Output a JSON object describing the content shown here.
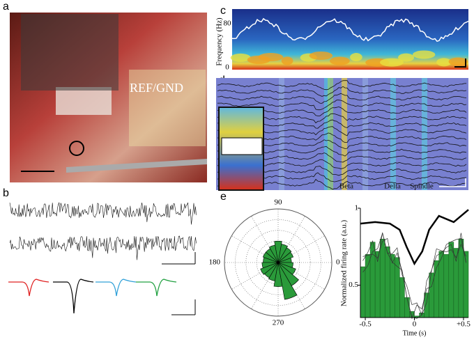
{
  "panels": {
    "a": {
      "label": "a",
      "annotation": "REF/GND"
    },
    "b": {
      "label": "b"
    },
    "c": {
      "label": "c",
      "axis_label": "Frequency (Hz)",
      "yticks": [
        80,
        0
      ]
    },
    "d": {
      "label": "d",
      "bands": [
        "Beta",
        "Delta",
        "Spindle"
      ]
    },
    "e": {
      "label": "e",
      "polar": {
        "angle_labels": [
          90,
          180,
          0,
          270
        ],
        "angles": [
          10,
          30,
          50,
          70,
          90,
          110,
          130,
          150,
          170,
          190,
          210,
          230,
          250,
          270,
          290,
          310,
          330,
          350
        ],
        "values": [
          0.25,
          0.3,
          0.32,
          0.35,
          0.4,
          0.33,
          0.3,
          0.3,
          0.28,
          0.3,
          0.35,
          0.33,
          0.35,
          0.45,
          0.7,
          0.5,
          0.35,
          0.28
        ]
      },
      "histogram": {
        "ylabel": "Normalized firing rate (a.u.)",
        "xlabel": "Time (s)",
        "xlim": [
          -0.55,
          0.55
        ],
        "ylim": [
          0.29,
          1.0
        ],
        "xticks": [
          -0.5,
          0,
          {
            "value": 0.5,
            "label": "+0.5"
          }
        ],
        "yticks": [
          1,
          0.5
        ],
        "bins": [
          -0.55,
          -0.5,
          -0.45,
          -0.4,
          -0.35,
          -0.3,
          -0.25,
          -0.2,
          -0.15,
          -0.1,
          -0.05,
          0,
          0.05,
          0.1,
          0.15,
          0.2,
          0.25,
          0.3,
          0.35,
          0.4,
          0.45,
          0.5,
          0.55
        ],
        "values": [
          0.62,
          0.7,
          0.78,
          0.72,
          0.8,
          0.75,
          0.7,
          0.68,
          0.55,
          0.42,
          0.33,
          0.3,
          0.32,
          0.45,
          0.58,
          0.66,
          0.72,
          0.7,
          0.78,
          0.74,
          0.8,
          0.72
        ],
        "trace": {
          "x": [
            -0.55,
            -0.4,
            -0.25,
            -0.15,
            -0.08,
            0,
            0.08,
            0.15,
            0.25,
            0.4,
            0.55
          ],
          "values": [
            0.9,
            0.91,
            0.9,
            0.86,
            0.75,
            0.64,
            0.72,
            0.86,
            0.95,
            0.91,
            0.99
          ]
        }
      }
    }
  }
}
